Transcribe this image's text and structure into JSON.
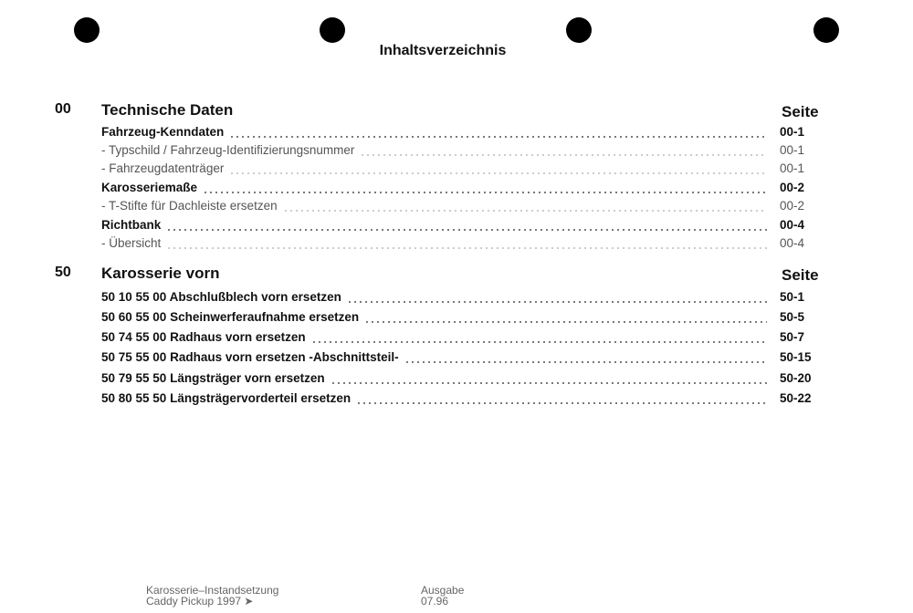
{
  "title": "Inhaltsverzeichnis",
  "sections": [
    {
      "number": "00",
      "title": "Technische Daten",
      "page_header": "Seite",
      "entries": [
        {
          "label": "Fahrzeug-Kenndaten",
          "page": "00-1",
          "bold": true
        },
        {
          "label": "- Typschild / Fahrzeug-Identifizierungsnummer",
          "page": "00-1",
          "bold": false
        },
        {
          "label": "- Fahrzeugdatenträger",
          "page": "00-1",
          "bold": false
        },
        {
          "label": "Karosseriemaße",
          "page": "00-2",
          "bold": true
        },
        {
          "label": "- T-Stifte für Dachleiste ersetzen",
          "page": "00-2",
          "bold": false
        },
        {
          "label": "Richtbank",
          "page": "00-4",
          "bold": true
        },
        {
          "label": "- Übersicht",
          "page": "00-4",
          "bold": false
        }
      ]
    },
    {
      "number": "50",
      "title": "Karosserie vorn",
      "page_header": "Seite",
      "entries": [
        {
          "label": "50 10 55 00 Abschlußblech vorn ersetzen",
          "page": "50-1",
          "bold": true
        },
        {
          "label": "50 60 55 00 Scheinwerferaufnahme ersetzen",
          "page": "50-5",
          "bold": true
        },
        {
          "label": "50 74 55 00 Radhaus vorn ersetzen",
          "page": "50-7",
          "bold": true
        },
        {
          "label": "50 75 55 00 Radhaus vorn ersetzen -Abschnittsteil-",
          "page": "50-15",
          "bold": true
        },
        {
          "label": "50 79 55 50 Längsträger vorn ersetzen",
          "page": "50-20",
          "bold": true
        },
        {
          "label": "50 80 55 50 Längsträgervorderteil ersetzen",
          "page": "50-22",
          "bold": true
        }
      ]
    }
  ],
  "footer": {
    "line1": "Karosserie–Instandsetzung",
    "line2": "Caddy Pickup 1997 ➤",
    "edition_label": "Ausgabe",
    "edition": "07.96"
  }
}
